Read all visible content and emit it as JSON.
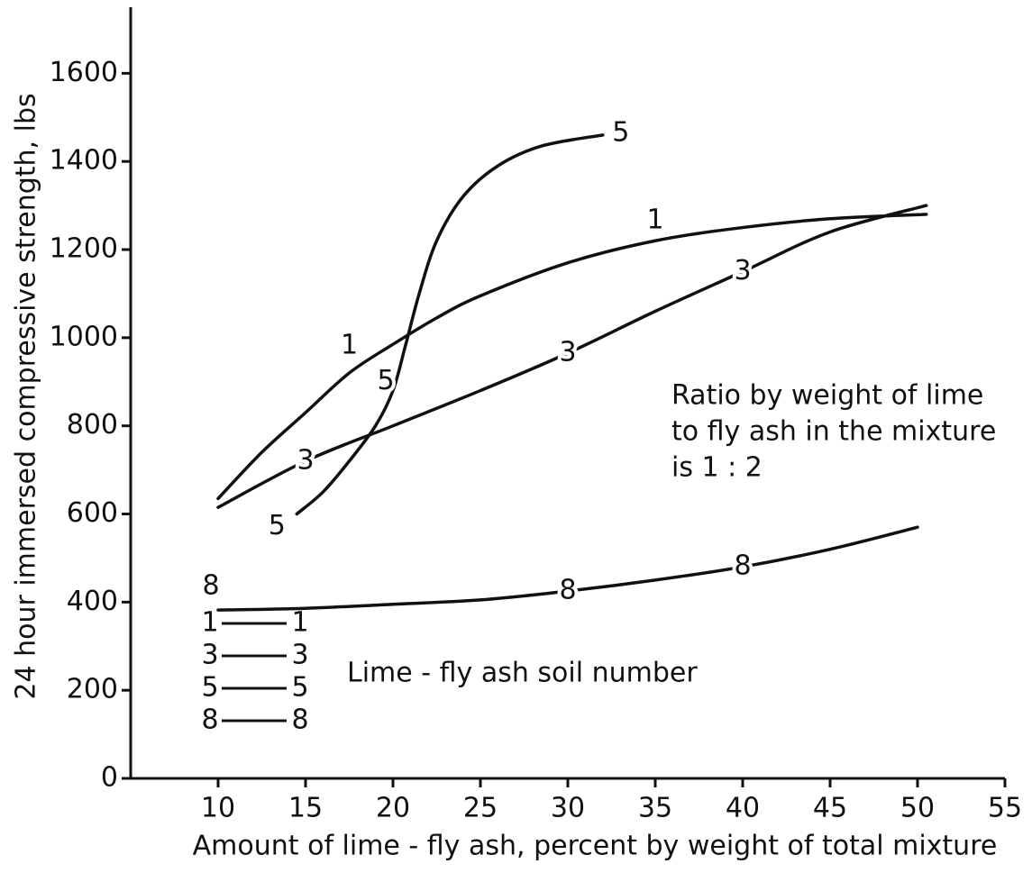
{
  "chart_data": {
    "type": "line",
    "xlabel": "Amount of lime - fly ash, percent by weight of total mixture",
    "ylabel": "24 hour immersed compressive strength, lbs",
    "annotation": [
      "Ratio by weight of lime",
      "to fly ash in the mixture",
      "is 1 : 2"
    ],
    "legend_title": "Lime - fly ash soil number",
    "xlim": [
      5,
      55
    ],
    "ylim": [
      0,
      1750
    ],
    "xticks": [
      10,
      15,
      20,
      25,
      30,
      35,
      40,
      45,
      50,
      55
    ],
    "yticks": [
      0,
      200,
      400,
      600,
      800,
      1000,
      1200,
      1400,
      1600
    ],
    "series": [
      {
        "name": "1",
        "color": "#111111",
        "x": [
          10,
          12.5,
          15,
          17.5,
          20,
          22.5,
          25,
          30,
          35,
          40,
          45,
          50.5
        ],
        "values": [
          635,
          740,
          830,
          920,
          985,
          1045,
          1095,
          1170,
          1220,
          1250,
          1270,
          1280
        ]
      },
      {
        "name": "3",
        "color": "#111111",
        "x": [
          10,
          15,
          20,
          25,
          30,
          35,
          40,
          45,
          50.5
        ],
        "values": [
          615,
          720,
          800,
          880,
          965,
          1060,
          1150,
          1240,
          1300
        ]
      },
      {
        "name": "5",
        "color": "#111111",
        "x": [
          14.5,
          16,
          17.5,
          19,
          20,
          20.7,
          21.5,
          22.5,
          24,
          26,
          28.5,
          32
        ],
        "values": [
          600,
          650,
          720,
          800,
          880,
          980,
          1100,
          1220,
          1320,
          1390,
          1435,
          1460
        ]
      },
      {
        "name": "8",
        "color": "#111111",
        "x": [
          10,
          15,
          20,
          25,
          30,
          35,
          40,
          45,
          50
        ],
        "values": [
          382,
          386,
          395,
          405,
          425,
          450,
          480,
          520,
          570
        ]
      }
    ]
  }
}
